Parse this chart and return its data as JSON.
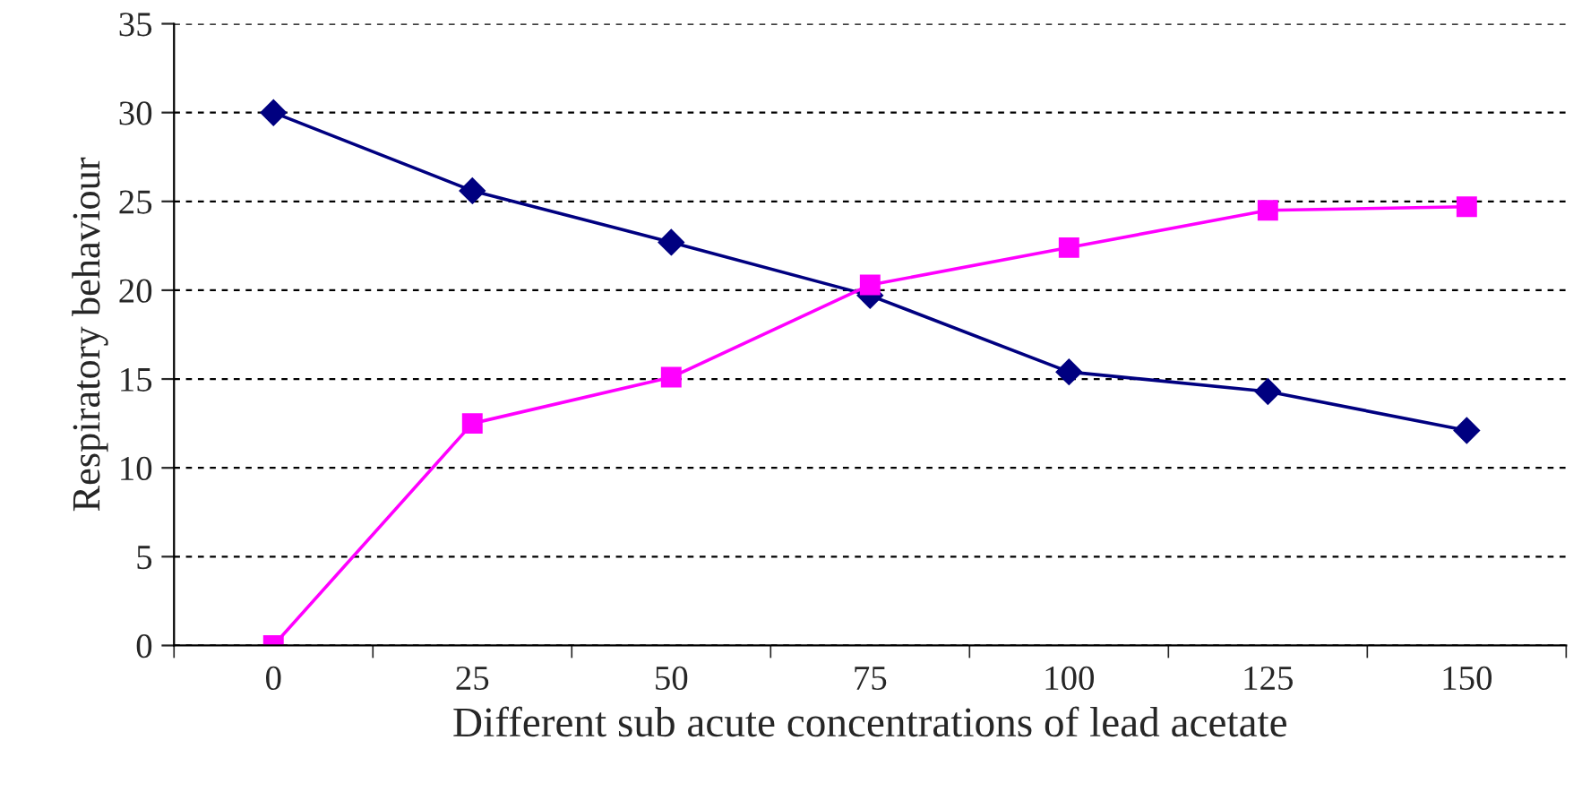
{
  "chart_data": {
    "type": "line",
    "xlabel": "Different sub acute concentrations of lead acetate",
    "ylabel": "Respiratory behaviour",
    "categories": [
      "0",
      "25",
      "50",
      "75",
      "100",
      "125",
      "150"
    ],
    "series": [
      {
        "color": "#000080",
        "marker": "diamond",
        "values": [
          30.0,
          25.6,
          22.7,
          19.7,
          15.4,
          14.3,
          12.1
        ]
      },
      {
        "color": "#ff00ff",
        "marker": "square",
        "values": [
          0.0,
          12.5,
          15.1,
          20.3,
          22.4,
          24.5,
          24.7
        ]
      }
    ],
    "ylim": [
      0,
      35
    ],
    "yticks": [
      0,
      5,
      10,
      15,
      20,
      25,
      30,
      35
    ],
    "grid": "y",
    "line_style": "solid",
    "legend": false
  }
}
